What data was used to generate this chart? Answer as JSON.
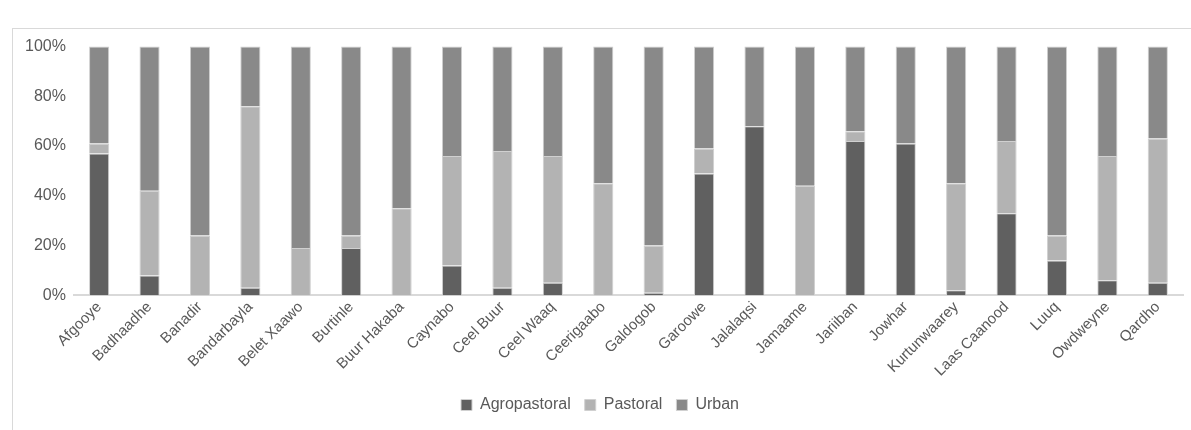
{
  "chart_data": {
    "type": "bar",
    "stacked": true,
    "categories": [
      "Afgooye",
      "Badhaadhe",
      "Banadir",
      "Bandarbayla",
      "Belet Xaawo",
      "Burtinle",
      "Buur Hakaba",
      "Caynabo",
      "Ceel Buur",
      "Ceel Waaq",
      "Ceerigaabo",
      "Galdogob",
      "Garoowe",
      "Jalalaqsi",
      "Jamaame",
      "Jariiban",
      "Jowhar",
      "Kurtunwaarey",
      "Laas Caanood",
      "Luuq",
      "Owdweyne",
      "Qardho"
    ],
    "series": [
      {
        "name": "Agropastoral",
        "color": "#606060",
        "values": [
          57,
          8,
          0,
          3,
          0,
          19,
          0,
          12,
          3,
          5,
          0,
          1,
          49,
          68,
          0,
          62,
          61,
          2,
          33,
          14,
          6,
          5
        ]
      },
      {
        "name": "Pastoral",
        "color": "#b3b3b3",
        "values": [
          4,
          34,
          24,
          73,
          19,
          5,
          35,
          44,
          55,
          51,
          45,
          19,
          10,
          0,
          44,
          4,
          0,
          43,
          29,
          10,
          50,
          58
        ]
      },
      {
        "name": "Urban",
        "color": "#898989",
        "values": [
          39,
          58,
          76,
          24,
          81,
          76,
          65,
          44,
          42,
          44,
          55,
          80,
          41,
          32,
          56,
          34,
          39,
          55,
          38,
          76,
          44,
          37
        ]
      }
    ],
    "ylim": [
      0,
      100
    ],
    "yticks": [
      {
        "value": 0,
        "label": "0%"
      },
      {
        "value": 20,
        "label": "20%"
      },
      {
        "value": 40,
        "label": "40%"
      },
      {
        "value": 60,
        "label": "60%"
      },
      {
        "value": 80,
        "label": "80%"
      },
      {
        "value": 100,
        "label": "100%"
      }
    ],
    "grid": false,
    "legend": "bottom"
  }
}
